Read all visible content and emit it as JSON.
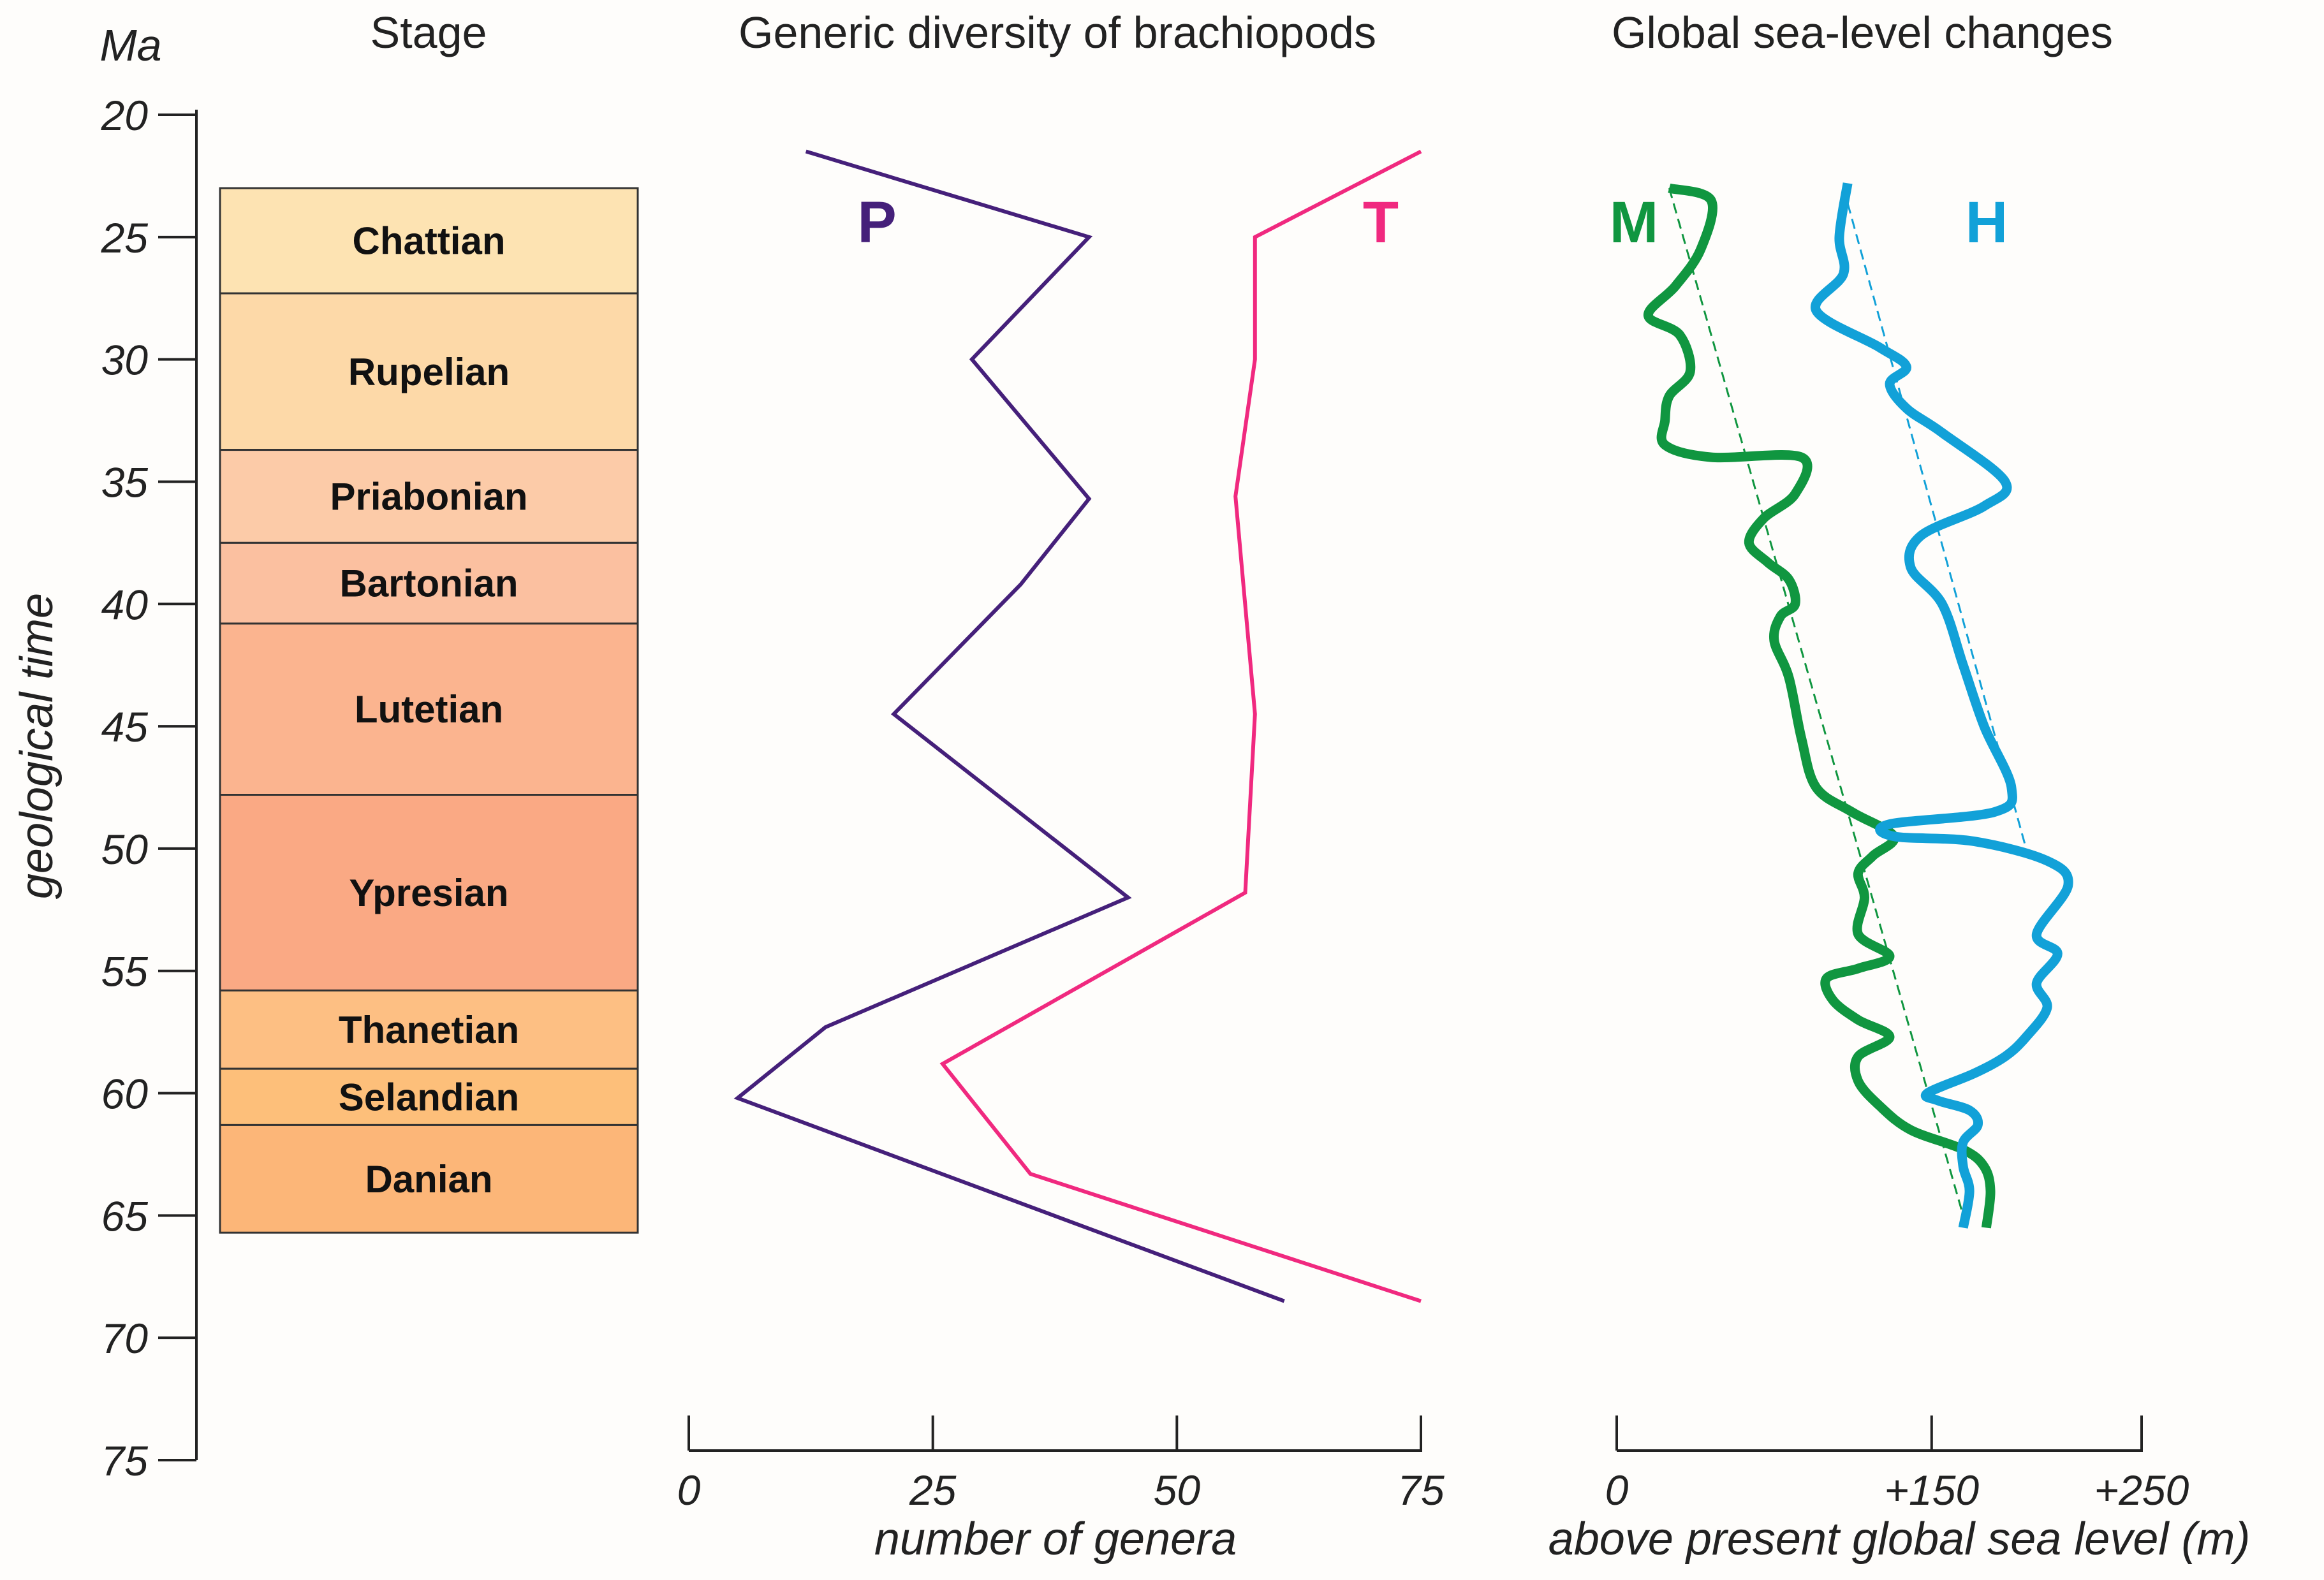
{
  "chart_data": [
    {
      "type": "table",
      "title": "Stage",
      "axis_unit": "Ma",
      "ylabel": "geological time",
      "ylim": [
        20,
        75
      ],
      "yticks": [
        20,
        25,
        30,
        35,
        40,
        45,
        50,
        55,
        60,
        65,
        70,
        75
      ],
      "stages": [
        {
          "name": "Chattian",
          "top": 23.0,
          "base": 27.3,
          "color": "#fde3b2"
        },
        {
          "name": "Rupelian",
          "top": 27.3,
          "base": 33.7,
          "color": "#fdd9a8"
        },
        {
          "name": "Priabonian",
          "top": 33.7,
          "base": 37.5,
          "color": "#fccba8"
        },
        {
          "name": "Bartonian",
          "top": 37.5,
          "base": 40.8,
          "color": "#fbc0a0"
        },
        {
          "name": "Lutetian",
          "top": 40.8,
          "base": 47.8,
          "color": "#fbb48f"
        },
        {
          "name": "Ypresian",
          "top": 47.8,
          "base": 55.8,
          "color": "#faa984"
        },
        {
          "name": "Thanetian",
          "top": 55.8,
          "base": 59.0,
          "color": "#fdbf83"
        },
        {
          "name": "Selandian",
          "top": 59.0,
          "base": 61.3,
          "color": "#fdbf7a"
        },
        {
          "name": "Danian",
          "top": 61.3,
          "base": 65.7,
          "color": "#fcb678"
        }
      ]
    },
    {
      "type": "line",
      "title": "Generic diversity of brachiopods",
      "xlabel": "number of genera",
      "xlim": [
        0,
        75
      ],
      "xticks": [
        0,
        25,
        50,
        75
      ],
      "series": [
        {
          "name": "P",
          "color": "#45207a",
          "points": [
            [
              12,
              21.5
            ],
            [
              41,
              25
            ],
            [
              29,
              30
            ],
            [
              41,
              35.7
            ],
            [
              34,
              39.2
            ],
            [
              21,
              44.5
            ],
            [
              45,
              52
            ],
            [
              14,
              57.3
            ],
            [
              5,
              60.2
            ],
            [
              61,
              68.5
            ]
          ]
        },
        {
          "name": "T",
          "color": "#f0297f",
          "points": [
            [
              75,
              21.5
            ],
            [
              58,
              25
            ],
            [
              58,
              30
            ],
            [
              56,
              35.6
            ],
            [
              58,
              44.5
            ],
            [
              57,
              51.8
            ],
            [
              26,
              58.8
            ],
            [
              35,
              63.3
            ],
            [
              75,
              68.5
            ]
          ]
        }
      ]
    },
    {
      "type": "line",
      "title": "Global sea-level changes",
      "xlabel": "above present global sea level (m)",
      "xlim": [
        0,
        250
      ],
      "xticks": [
        0,
        150,
        250
      ],
      "xtick_labels": [
        "0",
        "+150",
        "+250"
      ],
      "series": [
        {
          "name": "M",
          "color": "#109640",
          "points": [
            [
              25,
              23
            ],
            [
              45,
              23.5
            ],
            [
              40,
              25.5
            ],
            [
              28,
              27
            ],
            [
              15,
              28.2
            ],
            [
              30,
              29
            ],
            [
              35,
              30.5
            ],
            [
              25,
              31.5
            ],
            [
              23,
              32.5
            ],
            [
              23,
              33.5
            ],
            [
              45,
              34
            ],
            [
              88,
              34
            ],
            [
              85,
              35.5
            ],
            [
              70,
              36.5
            ],
            [
              63,
              37.5
            ],
            [
              72,
              38.3
            ],
            [
              82,
              39
            ],
            [
              85,
              40
            ],
            [
              78,
              40.5
            ],
            [
              75,
              41.5
            ],
            [
              82,
              43
            ],
            [
              88,
              45.5
            ],
            [
              95,
              47.5
            ],
            [
              112,
              48.5
            ],
            [
              132,
              49.5
            ],
            [
              122,
              50.3
            ],
            [
              115,
              51
            ],
            [
              118,
              52
            ],
            [
              115,
              53.5
            ],
            [
              130,
              54.4
            ],
            [
              115,
              54.9
            ],
            [
              100,
              55.3
            ],
            [
              103,
              56.2
            ],
            [
              115,
              57
            ],
            [
              130,
              57.7
            ],
            [
              115,
              58.5
            ],
            [
              115,
              59.5
            ],
            [
              125,
              60.5
            ],
            [
              140,
              61.5
            ],
            [
              165,
              62.3
            ],
            [
              175,
              63
            ],
            [
              178,
              64
            ],
            [
              176,
              65.5
            ]
          ],
          "trend": [
            [
              25,
              23
            ],
            [
              165,
              65
            ]
          ]
        },
        {
          "name": "H",
          "color": "#12a1d8",
          "points": [
            [
              110,
              22.8
            ],
            [
              106,
              25
            ],
            [
              108,
              26.5
            ],
            [
              95,
              28
            ],
            [
              125,
              29.5
            ],
            [
              138,
              30.3
            ],
            [
              130,
              31
            ],
            [
              138,
              32
            ],
            [
              155,
              33
            ],
            [
              185,
              35
            ],
            [
              175,
              36
            ],
            [
              145,
              37.2
            ],
            [
              140,
              38.5
            ],
            [
              155,
              40
            ],
            [
              165,
              42.5
            ],
            [
              175,
              45
            ],
            [
              188,
              47.5
            ],
            [
              180,
              48.5
            ],
            [
              130,
              49
            ],
            [
              132,
              49.5
            ],
            [
              170,
              49.7
            ],
            [
              205,
              50.5
            ],
            [
              215,
              51.5
            ],
            [
              200,
              53.5
            ],
            [
              210,
              54.3
            ],
            [
              200,
              55.5
            ],
            [
              205,
              56.5
            ],
            [
              195,
              57.7
            ],
            [
              185,
              58.5
            ],
            [
              170,
              59.2
            ],
            [
              148,
              60
            ],
            [
              153,
              60.3
            ],
            [
              168,
              60.7
            ],
            [
              172,
              61.3
            ],
            [
              165,
              62
            ],
            [
              165,
              63
            ],
            [
              168,
              64
            ],
            [
              165,
              65.5
            ]
          ],
          "trend": [
            [
              108,
              23
            ],
            [
              195,
              50
            ]
          ]
        }
      ]
    }
  ]
}
